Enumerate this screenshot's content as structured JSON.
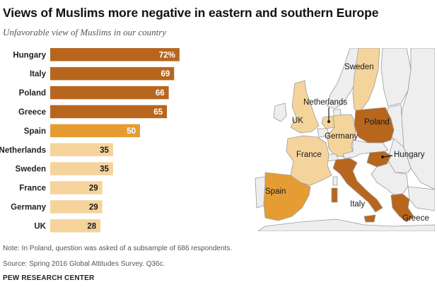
{
  "title": "Views of Muslims more negative in eastern and southern Europe",
  "subtitle": "Unfavorable view of Muslims in our country",
  "chart_data": {
    "type": "bar",
    "orientation": "horizontal",
    "categories": [
      "Hungary",
      "Italy",
      "Poland",
      "Greece",
      "Spain",
      "Netherlands",
      "Sweden",
      "France",
      "Germany",
      "UK"
    ],
    "values": [
      72,
      69,
      66,
      65,
      50,
      35,
      35,
      29,
      29,
      28
    ],
    "value_labels": [
      "72%",
      "69",
      "66",
      "65",
      "50",
      "35",
      "35",
      "29",
      "29",
      "28"
    ],
    "xlim": [
      0,
      100
    ],
    "grid": false,
    "colors": {
      "dark": "#b8661e",
      "medium": "#e59d33",
      "light": "#f5d49c"
    },
    "color_groups": [
      "dark",
      "dark",
      "dark",
      "dark",
      "medium",
      "light",
      "light",
      "light",
      "light",
      "light"
    ]
  },
  "map": {
    "labels": {
      "sweden": "Sweden",
      "netherlands": "Netherlands",
      "uk": "UK",
      "poland": "Poland",
      "germany": "Germany",
      "france": "France",
      "hungary": "Hungary",
      "spain": "Spain",
      "italy": "Italy",
      "greece": "Greece"
    },
    "colors": {
      "dark": "#b8661e",
      "medium": "#e59d33",
      "light": "#f5d49c",
      "other_land": "#eeeeee",
      "border": "#9a9a9a",
      "water": "#ffffff"
    }
  },
  "note": "Note: In Poland, question was asked of a subsample of 686 respondents.",
  "source": "Source: Spring 2016 Global Attitudes Survey. Q36c.",
  "org": "PEW RESEARCH CENTER"
}
